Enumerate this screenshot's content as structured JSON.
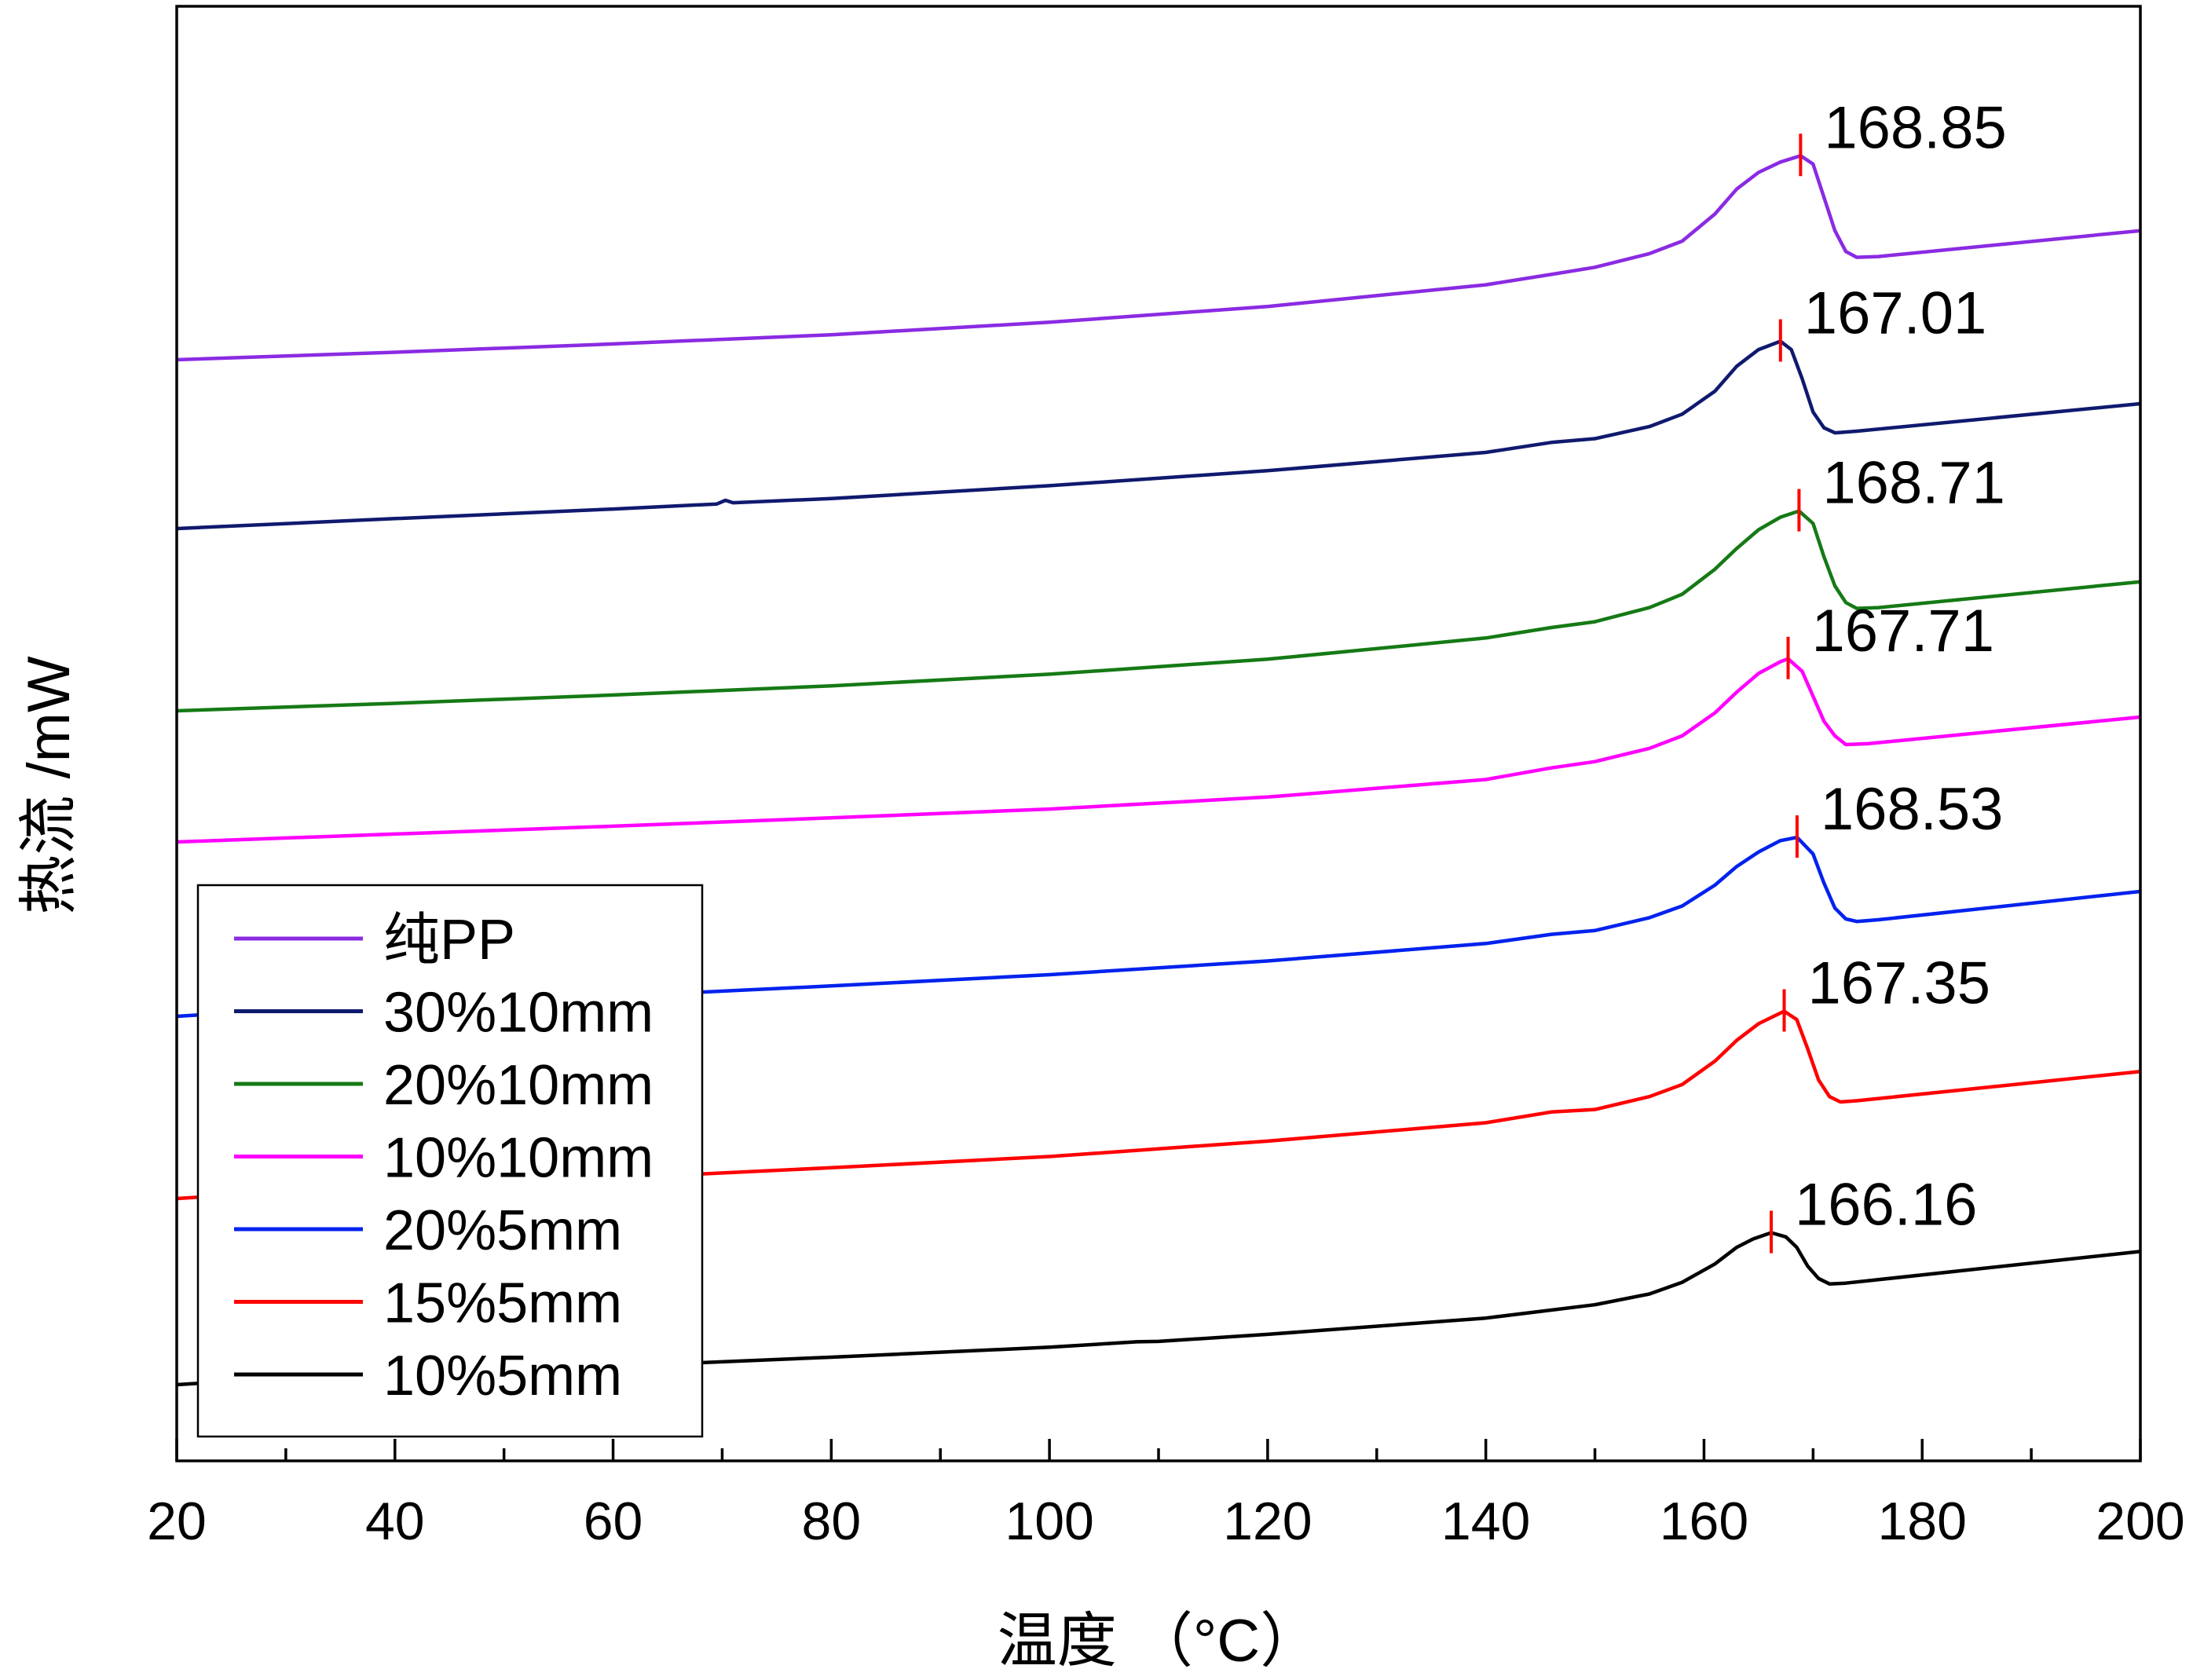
{
  "chart_data": {
    "type": "line",
    "title": "",
    "xlabel": "温度 （°C）",
    "ylabel": "热流 /mW",
    "xlim": [
      20,
      200
    ],
    "xticks": [
      20,
      40,
      60,
      80,
      100,
      120,
      140,
      160,
      180,
      200
    ],
    "yticks_shown": false,
    "grid": false,
    "legend_position": "bottom-left",
    "series": [
      {
        "name": "纯PP",
        "color": "#8a2be2",
        "peak_label": "168.85",
        "peak_x": 168.85,
        "points": [
          [
            20,
            1.0
          ],
          [
            40,
            2.8
          ],
          [
            60,
            4.8
          ],
          [
            80,
            7.0
          ],
          [
            100,
            10.0
          ],
          [
            120,
            13.8
          ],
          [
            140,
            19.0
          ],
          [
            146,
            21.5
          ],
          [
            150,
            23.2
          ],
          [
            155,
            26.5
          ],
          [
            158,
            29.5
          ],
          [
            161,
            36
          ],
          [
            163,
            42
          ],
          [
            165,
            46
          ],
          [
            167,
            48.5
          ],
          [
            168.85,
            50.0
          ],
          [
            170,
            48
          ],
          [
            171,
            40
          ],
          [
            172,
            32
          ],
          [
            173,
            27
          ],
          [
            174,
            25.6
          ],
          [
            176,
            25.8
          ],
          [
            200,
            32.0
          ]
        ]
      },
      {
        "name": "30%10mm",
        "color": "#0f1a6e",
        "peak_label": "167.01",
        "peak_x": 167.01,
        "points": [
          [
            20,
            1.0
          ],
          [
            40,
            3.4
          ],
          [
            60,
            5.7
          ],
          [
            69.5,
            6.9
          ],
          [
            70.3,
            7.8
          ],
          [
            71,
            7.2
          ],
          [
            80,
            8.2
          ],
          [
            100,
            11.3
          ],
          [
            120,
            14.9
          ],
          [
            140,
            19.3
          ],
          [
            146,
            21.7
          ],
          [
            150,
            22.6
          ],
          [
            155,
            25.5
          ],
          [
            158,
            28.5
          ],
          [
            161,
            34
          ],
          [
            163,
            40
          ],
          [
            165,
            44
          ],
          [
            167.01,
            46.0
          ],
          [
            168,
            44
          ],
          [
            169,
            37
          ],
          [
            170,
            29
          ],
          [
            171,
            25.2
          ],
          [
            172,
            24.0
          ],
          [
            174,
            24.4
          ],
          [
            200,
            31.0
          ]
        ]
      },
      {
        "name": "20%10mm",
        "color": "#157a15",
        "peak_label": "168.71",
        "peak_x": 168.71,
        "points": [
          [
            20,
            1.0
          ],
          [
            40,
            2.8
          ],
          [
            60,
            4.8
          ],
          [
            80,
            7.0
          ],
          [
            100,
            9.8
          ],
          [
            120,
            13.4
          ],
          [
            140,
            18.5
          ],
          [
            146,
            21.0
          ],
          [
            150,
            22.4
          ],
          [
            155,
            25.8
          ],
          [
            158,
            29
          ],
          [
            161,
            35
          ],
          [
            163,
            40
          ],
          [
            165,
            44.5
          ],
          [
            167,
            47.5
          ],
          [
            168.71,
            49.0
          ],
          [
            170,
            46
          ],
          [
            171,
            38
          ],
          [
            172,
            31
          ],
          [
            173,
            27
          ],
          [
            174,
            25.6
          ],
          [
            176,
            25.8
          ],
          [
            200,
            32.0
          ]
        ]
      },
      {
        "name": "10%10mm",
        "color": "#ff00ff",
        "peak_label": "167.71",
        "peak_x": 167.71,
        "points": [
          [
            20,
            1.0
          ],
          [
            40,
            2.9
          ],
          [
            60,
            4.8
          ],
          [
            80,
            6.8
          ],
          [
            100,
            8.9
          ],
          [
            120,
            11.8
          ],
          [
            140,
            16.0
          ],
          [
            146,
            18.8
          ],
          [
            150,
            20.3
          ],
          [
            155,
            23.5
          ],
          [
            158,
            26.5
          ],
          [
            161,
            32
          ],
          [
            163,
            37
          ],
          [
            165,
            41.5
          ],
          [
            167,
            44.3
          ],
          [
            167.71,
            45.0
          ],
          [
            169,
            42
          ],
          [
            170,
            36
          ],
          [
            171,
            30
          ],
          [
            172,
            26.5
          ],
          [
            173,
            24.4
          ],
          [
            175,
            24.6
          ],
          [
            200,
            31.0
          ]
        ]
      },
      {
        "name": "20%5mm",
        "color": "#0022ee",
        "peak_label": "168.53",
        "peak_x": 168.53,
        "points": [
          [
            20,
            1.0
          ],
          [
            30,
            2.6
          ],
          [
            40,
            3.6
          ],
          [
            60,
            5.8
          ],
          [
            80,
            8.3
          ],
          [
            100,
            11.0
          ],
          [
            120,
            14.3
          ],
          [
            140,
            18.5
          ],
          [
            146,
            20.7
          ],
          [
            150,
            21.6
          ],
          [
            155,
            24.7
          ],
          [
            158,
            27.5
          ],
          [
            161,
            32.5
          ],
          [
            163,
            37
          ],
          [
            165,
            40.5
          ],
          [
            167,
            43.2
          ],
          [
            168.53,
            44.0
          ],
          [
            170,
            40
          ],
          [
            171,
            33
          ],
          [
            172,
            27
          ],
          [
            173,
            24.4
          ],
          [
            174,
            23.8
          ],
          [
            176,
            24.2
          ],
          [
            200,
            31.0
          ]
        ]
      },
      {
        "name": "15%5mm",
        "color": "#ff0000",
        "peak_label": "167.35",
        "peak_x": 167.35,
        "points": [
          [
            20,
            1.0
          ],
          [
            30,
            2.6
          ],
          [
            40,
            3.8
          ],
          [
            60,
            5.9
          ],
          [
            80,
            8.4
          ],
          [
            100,
            11.1
          ],
          [
            120,
            14.8
          ],
          [
            140,
            19.2
          ],
          [
            146,
            21.8
          ],
          [
            150,
            22.4
          ],
          [
            155,
            25.5
          ],
          [
            158,
            28.4
          ],
          [
            161,
            34
          ],
          [
            163,
            39
          ],
          [
            165,
            43
          ],
          [
            167.35,
            46.0
          ],
          [
            168.5,
            44
          ],
          [
            169.5,
            37
          ],
          [
            170.5,
            29.5
          ],
          [
            171.5,
            25.5
          ],
          [
            172.5,
            24.2
          ],
          [
            174,
            24.5
          ],
          [
            200,
            31.5
          ]
        ]
      },
      {
        "name": "10%5mm",
        "color": "#000000",
        "peak_label": "166.16",
        "peak_x": 166.16,
        "points": [
          [
            20,
            1.0
          ],
          [
            30,
            2.6
          ],
          [
            40,
            3.6
          ],
          [
            60,
            5.4
          ],
          [
            80,
            7.6
          ],
          [
            100,
            10.0
          ],
          [
            108,
            11.3
          ],
          [
            110,
            11.4
          ],
          [
            120,
            13.1
          ],
          [
            140,
            17.0
          ],
          [
            150,
            20.2
          ],
          [
            155,
            22.8
          ],
          [
            158,
            25.6
          ],
          [
            161,
            30
          ],
          [
            163,
            34
          ],
          [
            164.5,
            36
          ],
          [
            166.16,
            37.5
          ],
          [
            167.5,
            36.5
          ],
          [
            168.5,
            34
          ],
          [
            169.5,
            29.5
          ],
          [
            170.5,
            26.5
          ],
          [
            171.5,
            25.2
          ],
          [
            173,
            25.4
          ],
          [
            200,
            33.0
          ]
        ]
      }
    ]
  }
}
